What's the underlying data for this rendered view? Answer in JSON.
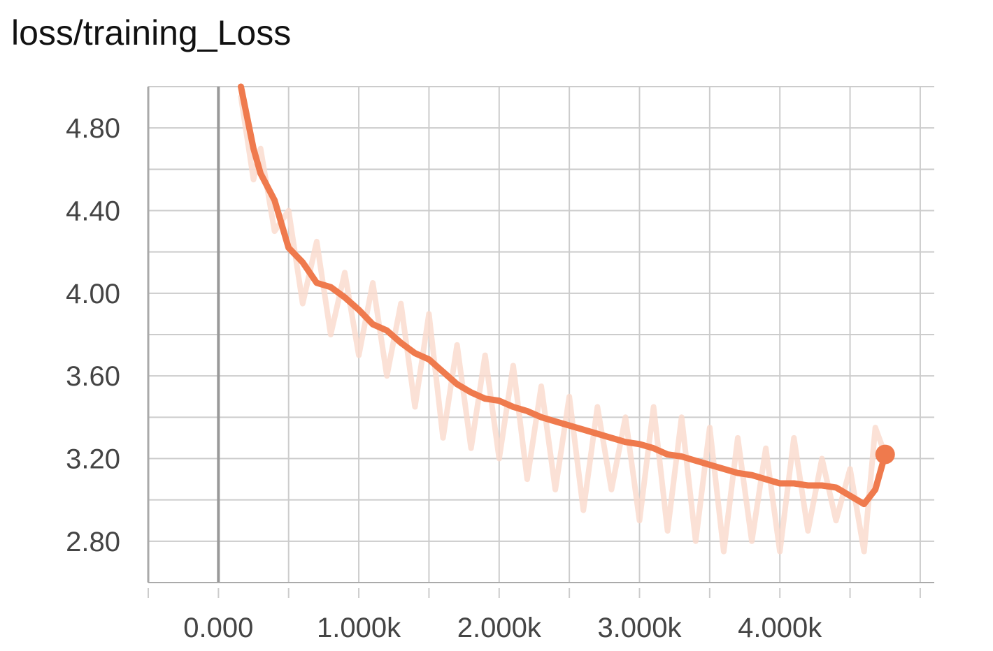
{
  "title": "loss/training_Loss",
  "colors": {
    "line": "#ef7a4d",
    "raw": "#fad9cc",
    "grid": "#cccccc",
    "zero": "#999999",
    "text": "#444444"
  },
  "chart_data": {
    "type": "line",
    "title": "loss/training_Loss",
    "xlabel": "",
    "ylabel": "",
    "xlim": [
      -500,
      5100
    ],
    "ylim": [
      2.6,
      5.0
    ],
    "grid": true,
    "x_ticks": [
      0,
      1000,
      2000,
      3000,
      4000
    ],
    "x_tick_labels": [
      "0.000",
      "1.000k",
      "2.000k",
      "3.000k",
      "4.000k"
    ],
    "y_ticks": [
      2.8,
      3.2,
      3.6,
      4.0,
      4.4,
      4.8
    ],
    "y_tick_labels": [
      "2.80",
      "3.20",
      "3.60",
      "4.00",
      "4.40",
      "4.80"
    ],
    "series": [
      {
        "smoothed": true,
        "color": "#ef7a4d",
        "x": [
          160,
          250,
          300,
          400,
          500,
          600,
          700,
          800,
          900,
          1000,
          1100,
          1200,
          1300,
          1400,
          1500,
          1600,
          1700,
          1800,
          1900,
          2000,
          2100,
          2200,
          2300,
          2400,
          2500,
          2600,
          2700,
          2800,
          2900,
          3000,
          3100,
          3200,
          3300,
          3400,
          3500,
          3600,
          3700,
          3800,
          3900,
          4000,
          4100,
          4200,
          4300,
          4400,
          4500,
          4600,
          4680,
          4750
        ],
        "y": [
          5.0,
          4.7,
          4.58,
          4.45,
          4.22,
          4.15,
          4.05,
          4.03,
          3.98,
          3.92,
          3.85,
          3.82,
          3.76,
          3.71,
          3.68,
          3.62,
          3.56,
          3.52,
          3.49,
          3.48,
          3.45,
          3.43,
          3.4,
          3.38,
          3.36,
          3.34,
          3.32,
          3.3,
          3.28,
          3.27,
          3.25,
          3.22,
          3.21,
          3.19,
          3.17,
          3.15,
          3.13,
          3.12,
          3.1,
          3.08,
          3.08,
          3.07,
          3.07,
          3.06,
          3.02,
          2.98,
          3.05,
          3.22
        ]
      },
      {
        "smoothed": false,
        "color": "#fad9cc",
        "x": [
          160,
          250,
          300,
          400,
          500,
          600,
          700,
          800,
          900,
          1000,
          1100,
          1200,
          1300,
          1400,
          1500,
          1600,
          1700,
          1800,
          1900,
          2000,
          2100,
          2200,
          2300,
          2400,
          2500,
          2600,
          2700,
          2800,
          2900,
          3000,
          3100,
          3200,
          3300,
          3400,
          3500,
          3600,
          3700,
          3800,
          3900,
          4000,
          4100,
          4200,
          4300,
          4400,
          4500,
          4600,
          4680,
          4750
        ],
        "y": [
          4.95,
          4.55,
          4.7,
          4.3,
          4.4,
          3.95,
          4.25,
          3.8,
          4.1,
          3.7,
          4.05,
          3.6,
          3.95,
          3.45,
          3.9,
          3.3,
          3.75,
          3.25,
          3.7,
          3.2,
          3.65,
          3.1,
          3.55,
          3.05,
          3.5,
          2.95,
          3.45,
          3.05,
          3.4,
          2.9,
          3.45,
          2.85,
          3.4,
          2.8,
          3.35,
          2.75,
          3.3,
          2.8,
          3.25,
          2.75,
          3.3,
          2.85,
          3.2,
          2.9,
          3.15,
          2.75,
          3.35,
          3.22
        ]
      }
    ]
  }
}
